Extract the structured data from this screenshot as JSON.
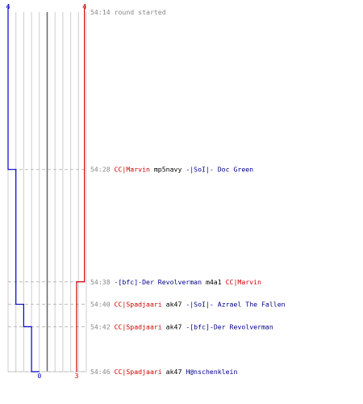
{
  "chart_data": {
    "type": "line",
    "title": "",
    "xlabel": "",
    "ylabel": "",
    "teams": {
      "blue": {
        "color": "#0000cc",
        "start": "4",
        "end": "0",
        "start_count": 4,
        "end_count": 0
      },
      "red": {
        "color": "#cc0000",
        "start": "4",
        "end": "3",
        "start_count": 4,
        "end_count": 3
      }
    },
    "series": [
      {
        "team": "blue",
        "points": [
          {
            "time": "54:14",
            "alive": 4
          },
          {
            "time": "54:28",
            "alive": 3
          },
          {
            "time": "54:40",
            "alive": 2
          },
          {
            "time": "54:42",
            "alive": 1
          },
          {
            "time": "54:46",
            "alive": 0
          }
        ]
      },
      {
        "team": "red",
        "points": [
          {
            "time": "54:14",
            "alive": 4
          },
          {
            "time": "54:38",
            "alive": 3
          },
          {
            "time": "54:46",
            "alive": 3
          }
        ]
      }
    ],
    "events": [
      {
        "time": "54:14",
        "sec": 0,
        "kind": "note",
        "text": "round started"
      },
      {
        "time": "54:28",
        "sec": 14,
        "kind": "kill",
        "killer": "CC|Marvin",
        "killer_team": "red",
        "weapon": "mp5navy",
        "victim": "-|SoI|- Doc Green",
        "victim_team": "blue"
      },
      {
        "time": "54:38",
        "sec": 24,
        "kind": "kill",
        "killer": "-[bfc]-Der Revolverman",
        "killer_team": "blue",
        "weapon": "m4a1",
        "victim": "CC|Marvin",
        "victim_team": "red"
      },
      {
        "time": "54:40",
        "sec": 26,
        "kind": "kill",
        "killer": "CC|Spadjaari",
        "killer_team": "red",
        "weapon": "ak47",
        "victim": "-|SoI|- Azrael The Fallen",
        "victim_team": "blue"
      },
      {
        "time": "54:42",
        "sec": 28,
        "kind": "kill",
        "killer": "CC|Spadjaari",
        "killer_team": "red",
        "weapon": "ak47",
        "victim": "-[bfc]-Der Revolverman",
        "victim_team": "blue"
      },
      {
        "time": "54:46",
        "sec": 32,
        "kind": "kill",
        "killer": "CC|Spadjaari",
        "killer_team": "red",
        "weapon": "ak47",
        "victim": "H@nschenklein",
        "victim_team": "blue"
      }
    ],
    "grid": true
  }
}
